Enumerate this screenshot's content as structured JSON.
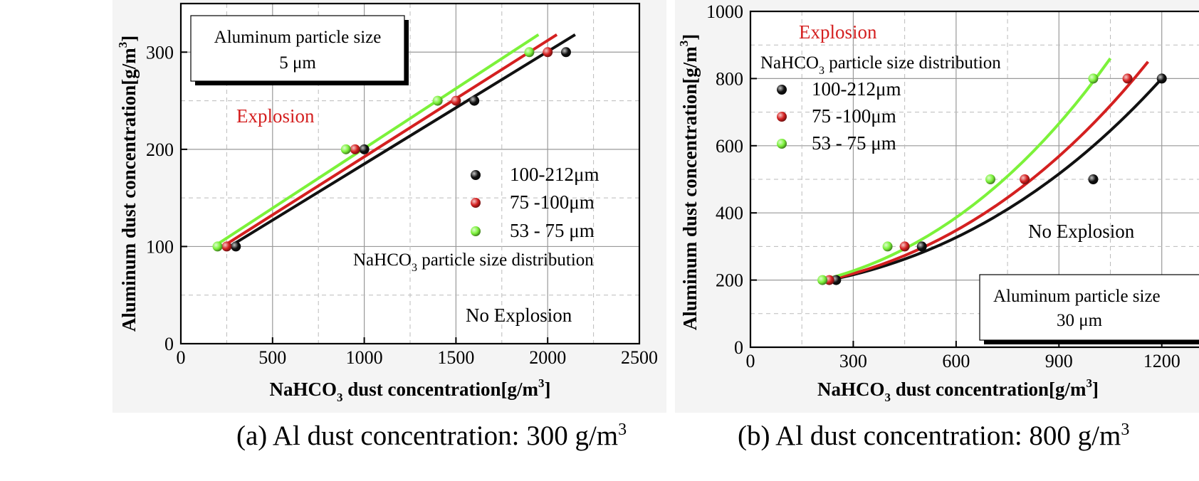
{
  "charts_meta": [
    {
      "caption": "(a) Al dust concentration: 300 g/m",
      "caption_sup": "3",
      "ylabel": "Aluminum dust concentration[g/m",
      "ylabel_sup": "3",
      "ylabel_end": "]",
      "xlabel_pre": "NaHCO",
      "xlabel_sub": "3",
      "xlabel_post": " dust concentration[g/m",
      "xlabel_sup": "3",
      "xlabel_end": "]",
      "info_box_line1": "Aluminum particle size",
      "info_box_line2": "5 μm",
      "region_explosion": "Explosion",
      "region_no_explosion": "No Explosion",
      "legend_title_pre": "NaHCO",
      "legend_title_sub": "3",
      "legend_title_post": " particle size distribution"
    },
    {
      "caption": "(b) Al dust concentration: 800 g/m",
      "caption_sup": "3",
      "ylabel": "Aluminum dust concentration[g/m",
      "ylabel_sup": "3",
      "ylabel_end": "]",
      "xlabel_pre": "NaHCO",
      "xlabel_sub": "3",
      "xlabel_post": " dust concentration[g/m",
      "xlabel_sup": "3",
      "xlabel_end": "]",
      "info_box_line1": "Aluminum particle size",
      "info_box_line2": "30 μm",
      "region_explosion": "Explosion",
      "region_no_explosion": "No Explosion",
      "legend_title_pre": "NaHCO",
      "legend_title_sub": "3",
      "legend_title_post": " particle size distribution"
    }
  ],
  "chart_data": [
    {
      "type": "scatter",
      "xlim": [
        0,
        2500
      ],
      "ylim": [
        0,
        350
      ],
      "xticks": [
        0,
        500,
        1000,
        1500,
        2000,
        2500
      ],
      "yticks": [
        0,
        100,
        200,
        300
      ],
      "grid": true,
      "legend_position": "right",
      "series": [
        {
          "name": "100-212μm",
          "color": "#111111",
          "points": [
            [
              300,
              100
            ],
            [
              1000,
              200
            ],
            [
              1600,
              250
            ],
            [
              2100,
              300
            ]
          ],
          "fit": [
            [
              240,
              97
            ],
            [
              2150,
              318
            ]
          ]
        },
        {
          "name": "75 -100μm",
          "color": "#d42020",
          "points": [
            [
              250,
              100
            ],
            [
              950,
              200
            ],
            [
              1500,
              250
            ],
            [
              2000,
              300
            ]
          ],
          "fit": [
            [
              220,
              99
            ],
            [
              2050,
              318
            ]
          ]
        },
        {
          "name": "53 - 75 μm",
          "color": "#7cf23a",
          "points": [
            [
              200,
              100
            ],
            [
              900,
              200
            ],
            [
              1400,
              250
            ],
            [
              1900,
              300
            ]
          ],
          "fit": [
            [
              180,
              100
            ],
            [
              1950,
              318
            ]
          ]
        }
      ]
    },
    {
      "type": "scatter",
      "xlim": [
        0,
        1400
      ],
      "ylim": [
        0,
        1000
      ],
      "xticks": [
        0,
        300,
        600,
        900,
        1200
      ],
      "yticks": [
        0,
        200,
        400,
        600,
        800,
        1000
      ],
      "grid": true,
      "legend_position": "top-left",
      "series": [
        {
          "name": "100-212μm",
          "color": "#111111",
          "points": [
            [
              250,
              200
            ],
            [
              500,
              300
            ],
            [
              1000,
              500
            ],
            [
              1200,
              800
            ]
          ],
          "fit": [
            [
              230,
              200
            ],
            [
              1200,
              800
            ]
          ]
        },
        {
          "name": "75 -100μm",
          "color": "#d42020",
          "points": [
            [
              230,
              200
            ],
            [
              450,
              300
            ],
            [
              800,
              500
            ],
            [
              1100,
              800
            ]
          ],
          "fit": [
            [
              225,
              200
            ],
            [
              1160,
              850
            ]
          ]
        },
        {
          "name": "53 - 75 μm",
          "color": "#7cf23a",
          "points": [
            [
              210,
              200
            ],
            [
              400,
              300
            ],
            [
              700,
              500
            ],
            [
              1000,
              800
            ]
          ],
          "fit": [
            [
              210,
              200
            ],
            [
              1050,
              860
            ]
          ]
        }
      ]
    }
  ]
}
